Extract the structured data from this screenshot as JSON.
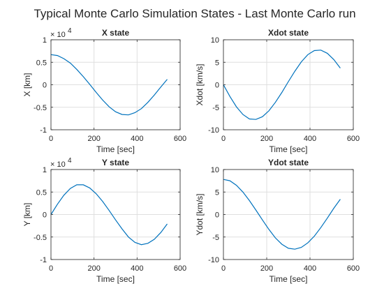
{
  "figure_title": "Typical Monte Carlo Simulation States - Last Monte Carlo run",
  "line_color": "#0072bd",
  "chart_data": [
    {
      "type": "line",
      "title": "X state",
      "xlabel": "Time [sec]",
      "ylabel": "X [km]",
      "xlim": [
        0,
        600
      ],
      "ylim": [
        -1,
        1
      ],
      "y_multiplier_label": "× 10",
      "y_multiplier_exponent": "4",
      "xticks": [
        "0",
        "200",
        "400",
        "600"
      ],
      "yticks": [
        "-1",
        "-0.5",
        "0",
        "0.5",
        "1"
      ],
      "grid": true,
      "x": [
        0,
        30,
        60,
        90,
        120,
        150,
        180,
        210,
        240,
        270,
        300,
        330,
        360,
        390,
        420,
        450,
        480,
        510,
        540
      ],
      "y": [
        0.67,
        0.65,
        0.58,
        0.48,
        0.34,
        0.18,
        0.01,
        -0.17,
        -0.34,
        -0.49,
        -0.6,
        -0.66,
        -0.67,
        -0.62,
        -0.53,
        -0.39,
        -0.23,
        -0.05,
        0.12
      ]
    },
    {
      "type": "line",
      "title": "Xdot state",
      "xlabel": "Time [sec]",
      "ylabel": "Xdot [km/s]",
      "xlim": [
        0,
        600
      ],
      "ylim": [
        -10,
        10
      ],
      "xticks": [
        "0",
        "200",
        "400",
        "600"
      ],
      "yticks": [
        "-10",
        "-5",
        "0",
        "5",
        "10"
      ],
      "grid": true,
      "x": [
        0,
        30,
        60,
        90,
        120,
        150,
        180,
        210,
        240,
        270,
        300,
        330,
        360,
        390,
        420,
        450,
        480,
        510,
        540
      ],
      "y": [
        0,
        -2.6,
        -4.9,
        -6.6,
        -7.6,
        -7.7,
        -7.1,
        -5.8,
        -3.9,
        -1.7,
        0.7,
        3.0,
        5.1,
        6.7,
        7.6,
        7.7,
        7.0,
        5.6,
        3.7
      ]
    },
    {
      "type": "line",
      "title": "Y state",
      "xlabel": "Time [sec]",
      "ylabel": "Y [km]",
      "xlim": [
        0,
        600
      ],
      "ylim": [
        -1,
        1
      ],
      "y_multiplier_label": "× 10",
      "y_multiplier_exponent": "4",
      "xticks": [
        "0",
        "200",
        "400",
        "600"
      ],
      "yticks": [
        "-1",
        "-0.5",
        "0",
        "0.5",
        "1"
      ],
      "grid": true,
      "x": [
        0,
        30,
        60,
        90,
        120,
        150,
        180,
        210,
        240,
        270,
        300,
        330,
        360,
        390,
        420,
        450,
        480,
        510,
        540
      ],
      "y": [
        0,
        0.23,
        0.43,
        0.58,
        0.66,
        0.66,
        0.59,
        0.46,
        0.29,
        0.09,
        -0.12,
        -0.32,
        -0.5,
        -0.62,
        -0.67,
        -0.64,
        -0.55,
        -0.4,
        -0.21
      ]
    },
    {
      "type": "line",
      "title": "Ydot state",
      "xlabel": "Time [sec]",
      "ylabel": "Ydot [km/s]",
      "xlim": [
        0,
        600
      ],
      "ylim": [
        -10,
        10
      ],
      "xticks": [
        "0",
        "200",
        "400",
        "600"
      ],
      "yticks": [
        "-10",
        "-5",
        "0",
        "5",
        "10"
      ],
      "grid": true,
      "x": [
        0,
        30,
        60,
        90,
        120,
        150,
        180,
        210,
        240,
        270,
        300,
        330,
        360,
        390,
        420,
        450,
        480,
        510,
        540
      ],
      "y": [
        7.8,
        7.5,
        6.5,
        5.0,
        3.1,
        1.0,
        -1.2,
        -3.3,
        -5.2,
        -6.6,
        -7.5,
        -7.7,
        -7.3,
        -6.3,
        -4.8,
        -2.9,
        -0.8,
        1.4,
        3.4
      ]
    }
  ]
}
